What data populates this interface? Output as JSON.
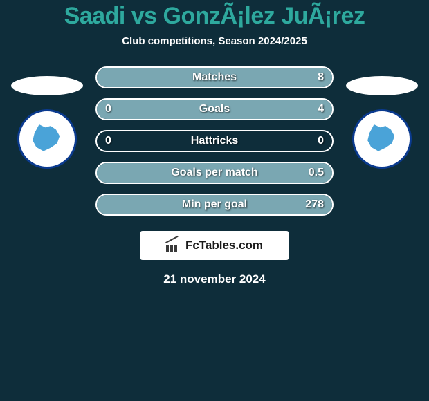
{
  "colors": {
    "background": "#0e2d3a",
    "title": "#2ea99e",
    "text": "#ffffff",
    "player1_fill": "#7aa7b2",
    "player2_fill": "#7aa7b2",
    "badge_border": "#0a3a8f",
    "badge_inner": "#4aa3d8"
  },
  "header": {
    "title": "Saadi vs GonzÃ¡lez JuÃ¡rez",
    "subtitle": "Club competitions, Season 2024/2025"
  },
  "stats": {
    "rows": [
      {
        "label": "Matches",
        "left": "",
        "right": "8",
        "left_pct": 0,
        "right_pct": 100
      },
      {
        "label": "Goals",
        "left": "0",
        "right": "4",
        "left_pct": 0,
        "right_pct": 100
      },
      {
        "label": "Hattricks",
        "left": "0",
        "right": "0",
        "left_pct": 0,
        "right_pct": 0
      },
      {
        "label": "Goals per match",
        "left": "",
        "right": "0.5",
        "left_pct": 0,
        "right_pct": 100
      },
      {
        "label": "Min per goal",
        "left": "",
        "right": "278",
        "left_pct": 0,
        "right_pct": 100
      }
    ]
  },
  "brand": {
    "text": "FcTables.com"
  },
  "date": "21 november 2024"
}
